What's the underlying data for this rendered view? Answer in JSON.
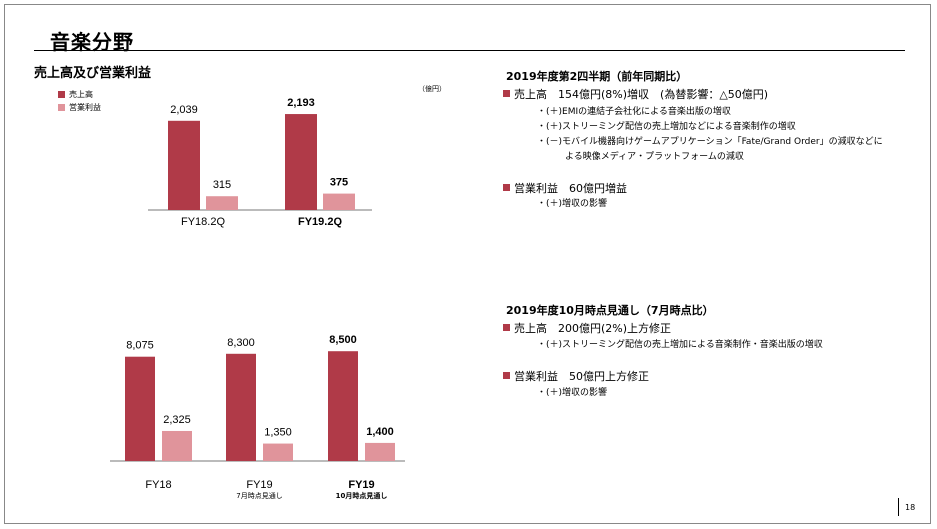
{
  "title": "音楽分野",
  "section_title": "売上高及び営業利益",
  "unit_label": "（億円）",
  "legend": [
    {
      "label": "売上高",
      "color": "#b03a48"
    },
    {
      "label": "営業利益",
      "color": "#e0949b"
    }
  ],
  "chart_data": [
    {
      "type": "bar",
      "categories": [
        "FY18.2Q",
        "FY19.2Q"
      ],
      "category_sublabels": [
        "",
        ""
      ],
      "bold_categories": [
        false,
        true
      ],
      "series": [
        {
          "name": "売上高",
          "values": [
            2039,
            2193
          ],
          "labels": [
            "2,039",
            "2,193"
          ],
          "color": "#b03a48"
        },
        {
          "name": "営業利益",
          "values": [
            315,
            375
          ],
          "labels": [
            "315",
            "375"
          ],
          "color": "#e0949b"
        }
      ],
      "ylim": [
        0,
        2400
      ]
    },
    {
      "type": "bar",
      "categories": [
        "FY18",
        "FY19",
        "FY19"
      ],
      "category_sublabels": [
        "",
        "7月時点見通し",
        "10月時点見通し"
      ],
      "bold_categories": [
        false,
        false,
        true
      ],
      "series": [
        {
          "name": "売上高",
          "values": [
            8075,
            8300,
            8500
          ],
          "labels": [
            "8,075",
            "8,300",
            "8,500"
          ],
          "color": "#b03a48"
        },
        {
          "name": "営業利益",
          "values": [
            2325,
            1350,
            1400
          ],
          "labels": [
            "2,325",
            "1,350",
            "1,400"
          ],
          "color": "#e0949b"
        }
      ],
      "ylim": [
        0,
        9600
      ]
    }
  ],
  "right": {
    "block1": {
      "heading": "2019年度第2四半期（前年同期比）",
      "item1": "売上高　154億円(8%)増収　(為替影響：△50億円)",
      "item1_subs": [
        "・(＋)EMIの連結子会社化による音楽出版の増収",
        "・(＋)ストリーミング配信の売上増加などによる音楽制作の増収",
        "・(－)モバイル機器向けゲームアプリケーション「Fate/Grand Order」の減収などに",
        "よる映像メディア・プラットフォームの減収"
      ],
      "item2": "営業利益　60億円増益",
      "item2_subs": [
        "・(＋)増収の影響"
      ]
    },
    "block2": {
      "heading": "2019年度10月時点見通し（7月時点比）",
      "item1": "売上高　200億円(2%)上方修正",
      "item1_subs": [
        "・(＋)ストリーミング配信の売上増加による音楽制作・音楽出版の増収"
      ],
      "item2": "営業利益　50億円上方修正",
      "item2_subs": [
        "・(＋)増収の影響"
      ]
    }
  },
  "page_number": "18"
}
